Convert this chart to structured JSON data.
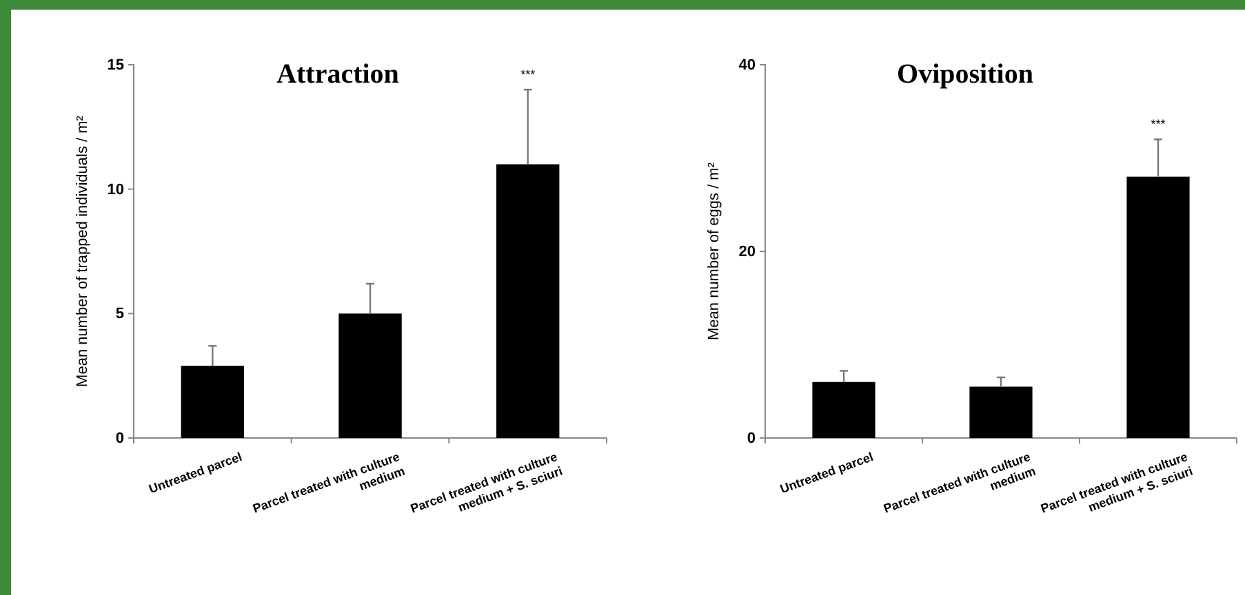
{
  "chart_data": [
    {
      "type": "bar",
      "title": "Attraction",
      "ylabel": "Mean number of trapped individuals / m²",
      "categories": [
        "Untreated parcel",
        "Parcel treated with culture medium",
        "Parcel treated with culture medium + S. sciuri"
      ],
      "values": [
        2.9,
        5.0,
        11.0
      ],
      "color": "#000000",
      "errors": [
        [
          2.9,
          3.7
        ],
        [
          5.0,
          6.2
        ],
        [
          11.0,
          14.0
        ]
      ],
      "ylim": [
        0,
        15
      ],
      "yticks": [
        0,
        5,
        10,
        15
      ],
      "annotations": [
        "***"
      ]
    },
    {
      "type": "bar",
      "title": "Oviposition",
      "ylabel": "Mean number of eggs / m²",
      "categories": [
        "Untreated parcel",
        "Parcel treated with culture medium",
        "Parcel treated with culture medium + S. sciuri"
      ],
      "values": [
        6.0,
        5.5,
        28.0
      ],
      "color": "#000000",
      "errors": [
        [
          6.0,
          7.2
        ],
        [
          5.5,
          6.5
        ],
        [
          28.0,
          32.0
        ]
      ],
      "ylim": [
        0,
        40
      ],
      "yticks": [
        0,
        20,
        40
      ],
      "annotations": [
        "***"
      ]
    }
  ]
}
